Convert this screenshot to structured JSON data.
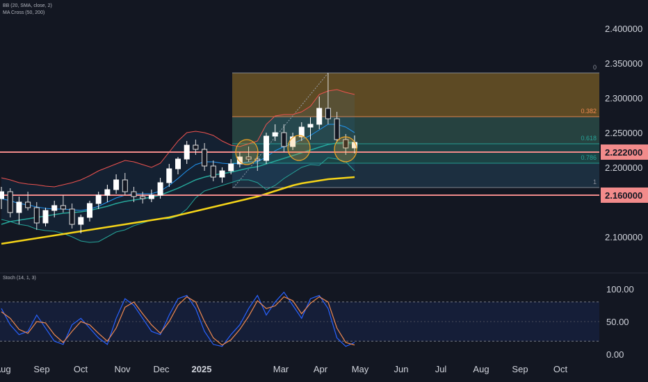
{
  "indicators": {
    "bb_label": "BB (20, SMA, close, 2)",
    "ma_label": "MA Cross (50, 200)",
    "stoch_label": "Stoch (14, 1, 3)"
  },
  "colors": {
    "background": "#131722",
    "up": "#ffffff",
    "down": "#e0e0e0",
    "bb_band": "#ef5350",
    "bb_basis": "#2196f3",
    "ma50": "#26a69a",
    "ma200": "#f5d418",
    "sr_line": "#f28b8b",
    "fib_top": "#6b5325",
    "fib_382": "#2a4a45",
    "fib_618": "#1e4a4a",
    "fib_786": "#1f3445",
    "fib_1": "#262a35",
    "stoch_k": "#2962ff",
    "stoch_d": "#f28b50"
  },
  "chart_data": [
    {
      "type": "candlestick",
      "x_axis_labels": [
        "Aug",
        "Sep",
        "Oct",
        "Nov",
        "Dec",
        "2025",
        "Mar",
        "Apr",
        "May",
        "Jun",
        "Jul",
        "Aug",
        "Sep",
        "Oct"
      ],
      "y_ticks": [
        "2.400000",
        "2.350000",
        "2.300000",
        "2.250000",
        "2.200000",
        "2.100000"
      ],
      "y_range": [
        2.06,
        2.42
      ],
      "price_labels": [
        {
          "value": 2.222,
          "text": "2.222000"
        },
        {
          "value": 2.16,
          "text": "2.160000"
        }
      ],
      "fib_levels": [
        {
          "label": "0",
          "value": 2.336
        },
        {
          "label": "0.382",
          "value": 2.273
        },
        {
          "label": "0.618",
          "value": 2.234
        },
        {
          "label": "0.786",
          "value": 2.206
        },
        {
          "label": "1",
          "value": 2.171
        }
      ],
      "ohlc_weekly_approx": [
        [
          2.155,
          2.172,
          2.14,
          2.165
        ],
        [
          2.165,
          2.17,
          2.128,
          2.135
        ],
        [
          2.135,
          2.158,
          2.118,
          2.15
        ],
        [
          2.15,
          2.165,
          2.138,
          2.142
        ],
        [
          2.142,
          2.15,
          2.11,
          2.12
        ],
        [
          2.12,
          2.142,
          2.115,
          2.138
        ],
        [
          2.138,
          2.152,
          2.128,
          2.145
        ],
        [
          2.145,
          2.16,
          2.135,
          2.14
        ],
        [
          2.14,
          2.148,
          2.112,
          2.118
        ],
        [
          2.118,
          2.132,
          2.105,
          2.128
        ],
        [
          2.128,
          2.152,
          2.122,
          2.148
        ],
        [
          2.148,
          2.165,
          2.14,
          2.16
        ],
        [
          2.16,
          2.175,
          2.15,
          2.168
        ],
        [
          2.168,
          2.19,
          2.162,
          2.182
        ],
        [
          2.182,
          2.192,
          2.16,
          2.165
        ],
        [
          2.165,
          2.172,
          2.15,
          2.158
        ],
        [
          2.158,
          2.165,
          2.148,
          2.155
        ],
        [
          2.155,
          2.168,
          2.15,
          2.16
        ],
        [
          2.16,
          2.185,
          2.155,
          2.178
        ],
        [
          2.178,
          2.205,
          2.172,
          2.198
        ],
        [
          2.198,
          2.215,
          2.19,
          2.212
        ],
        [
          2.212,
          2.238,
          2.205,
          2.232
        ],
        [
          2.232,
          2.24,
          2.218,
          2.226
        ],
        [
          2.226,
          2.235,
          2.195,
          2.202
        ],
        [
          2.202,
          2.21,
          2.18,
          2.186
        ],
        [
          2.186,
          2.2,
          2.178,
          2.195
        ],
        [
          2.195,
          2.212,
          2.19,
          2.205
        ],
        [
          2.205,
          2.222,
          2.2,
          2.215
        ],
        [
          2.215,
          2.23,
          2.208,
          2.212
        ],
        [
          2.212,
          2.218,
          2.195,
          2.21
        ],
        [
          2.21,
          2.25,
          2.205,
          2.245
        ],
        [
          2.245,
          2.262,
          2.238,
          2.25
        ],
        [
          2.25,
          2.262,
          2.222,
          2.23
        ],
        [
          2.23,
          2.25,
          2.225,
          2.244
        ],
        [
          2.244,
          2.265,
          2.238,
          2.258
        ],
        [
          2.258,
          2.272,
          2.24,
          2.262
        ],
        [
          2.262,
          2.302,
          2.255,
          2.285
        ],
        [
          2.285,
          2.336,
          2.262,
          2.27
        ],
        [
          2.27,
          2.28,
          2.236,
          2.24
        ],
        [
          2.24,
          2.248,
          2.218,
          2.228
        ],
        [
          2.228,
          2.246,
          2.22,
          2.236
        ]
      ],
      "bb_upper": [
        2.185,
        2.182,
        2.178,
        2.176,
        2.175,
        2.173,
        2.172,
        2.175,
        2.178,
        2.182,
        2.188,
        2.195,
        2.2,
        2.205,
        2.21,
        2.208,
        2.204,
        2.2,
        2.206,
        2.222,
        2.238,
        2.25,
        2.252,
        2.25,
        2.246,
        2.238,
        2.232,
        2.23,
        2.234,
        2.238,
        2.262,
        2.274,
        2.276,
        2.276,
        2.28,
        2.288,
        2.305,
        2.31,
        2.312,
        2.308,
        2.305
      ],
      "bb_basis": [
        2.155,
        2.152,
        2.148,
        2.146,
        2.143,
        2.141,
        2.14,
        2.14,
        2.139,
        2.138,
        2.14,
        2.144,
        2.15,
        2.156,
        2.16,
        2.162,
        2.162,
        2.162,
        2.166,
        2.174,
        2.184,
        2.195,
        2.204,
        2.208,
        2.208,
        2.206,
        2.205,
        2.206,
        2.208,
        2.208,
        2.215,
        2.224,
        2.23,
        2.234,
        2.24,
        2.246,
        2.254,
        2.262,
        2.262,
        2.258,
        2.25
      ],
      "bb_lower": [
        2.125,
        2.122,
        2.118,
        2.116,
        2.111,
        2.109,
        2.108,
        2.105,
        2.1,
        2.094,
        2.092,
        2.093,
        2.1,
        2.107,
        2.11,
        2.116,
        2.12,
        2.124,
        2.126,
        2.126,
        2.13,
        2.14,
        2.156,
        2.166,
        2.17,
        2.174,
        2.178,
        2.182,
        2.182,
        2.178,
        2.168,
        2.174,
        2.184,
        2.192,
        2.2,
        2.204,
        2.203,
        2.214,
        2.212,
        2.208,
        2.195
      ],
      "ma50": [
        2.118,
        2.122,
        2.124,
        2.126,
        2.128,
        2.13,
        2.132,
        2.134,
        2.135,
        2.136,
        2.138,
        2.141,
        2.144,
        2.148,
        2.151,
        2.153,
        2.155,
        2.157,
        2.16,
        2.165,
        2.17,
        2.176,
        2.182,
        2.186,
        2.189,
        2.191,
        2.193,
        2.196,
        2.199,
        2.201,
        2.205,
        2.209,
        2.213,
        2.217,
        2.221,
        2.225,
        2.229,
        2.233,
        2.235,
        2.236,
        2.236
      ],
      "ma200": [
        2.09,
        2.092,
        2.094,
        2.096,
        2.098,
        2.1,
        2.102,
        2.104,
        2.106,
        2.108,
        2.11,
        2.112,
        2.114,
        2.116,
        2.118,
        2.12,
        2.122,
        2.124,
        2.126,
        2.128,
        2.131,
        2.134,
        2.137,
        2.14,
        2.143,
        2.146,
        2.149,
        2.152,
        2.155,
        2.158,
        2.162,
        2.166,
        2.17,
        2.174,
        2.177,
        2.179,
        2.181,
        2.183,
        2.184,
        2.185,
        2.186
      ]
    },
    {
      "type": "line",
      "title": "Stoch (14, 1, 3)",
      "y_ticks": [
        "100.00",
        "50.00",
        "0.00"
      ],
      "y_range": [
        0,
        100
      ],
      "bands": [
        20,
        80
      ],
      "series": [
        {
          "values": [
            70,
            45,
            30,
            35,
            60,
            40,
            20,
            15,
            45,
            55,
            40,
            25,
            15,
            55,
            85,
            75,
            55,
            35,
            30,
            60,
            85,
            90,
            70,
            35,
            15,
            12,
            30,
            45,
            70,
            90,
            60,
            80,
            95,
            75,
            55,
            85,
            90,
            70,
            25,
            12,
            18
          ]
        },
        {
          "values": [
            65,
            55,
            38,
            32,
            50,
            48,
            30,
            18,
            35,
            50,
            45,
            32,
            20,
            40,
            72,
            80,
            62,
            45,
            32,
            50,
            75,
            88,
            80,
            50,
            25,
            14,
            22,
            38,
            58,
            82,
            70,
            74,
            88,
            82,
            62,
            78,
            88,
            80,
            40,
            18,
            14
          ]
        }
      ]
    }
  ]
}
